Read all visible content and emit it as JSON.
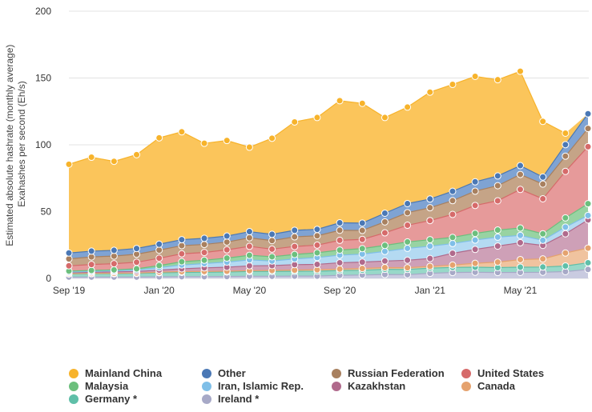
{
  "chart_data": {
    "type": "area",
    "stacked": true,
    "ylabel_lines": [
      "Estimated absolute hashrate (monthly average)",
      "Exahashes per second (Eh/s)"
    ],
    "ylim": [
      0,
      200
    ],
    "yticks": [
      "0",
      "50",
      "100",
      "150",
      "200"
    ],
    "x": [
      "Sep '19",
      "Oct '19",
      "Nov '19",
      "Dec '19",
      "Jan '20",
      "Feb '20",
      "Mar '20",
      "Apr '20",
      "May '20",
      "Jun '20",
      "Jul '20",
      "Aug '20",
      "Sep '20",
      "Oct '20",
      "Nov '20",
      "Dec '20",
      "Jan '21",
      "Feb '21",
      "Mar '21",
      "Apr '21",
      "May '21",
      "Jun '21",
      "Jul '21",
      "Aug '21"
    ],
    "xticks": [
      {
        "index": 0,
        "label": "Sep '19"
      },
      {
        "index": 4,
        "label": "Jan '20"
      },
      {
        "index": 8,
        "label": "May '20"
      },
      {
        "index": 12,
        "label": "Sep '20"
      },
      {
        "index": 16,
        "label": "Jan '21"
      },
      {
        "index": 20,
        "label": "May '21"
      }
    ],
    "grid": true,
    "legend_position": "bottom",
    "legend_columns": 4,
    "series": [
      {
        "name": "Mainland China",
        "color": "#f7b32b",
        "fill": "#fbc55b",
        "values": [
          66.4,
          70.3,
          66.6,
          70.2,
          79.6,
          80.7,
          71.1,
          71.5,
          63.2,
          71.9,
          81.1,
          83.7,
          91.4,
          89.6,
          71.6,
          72.2,
          80.0,
          80.0,
          78.9,
          72.0,
          70.6,
          41.6,
          8.6,
          null
        ]
      },
      {
        "name": "Other",
        "color": "#4a78b5",
        "fill": "#7fa3d3",
        "values": [
          4.4,
          4.3,
          4.3,
          4.3,
          4.4,
          4.5,
          4.6,
          4.5,
          4.6,
          4.7,
          4.9,
          4.8,
          5.6,
          5.5,
          6.5,
          6.8,
          6.5,
          7.0,
          7.0,
          7.3,
          6.6,
          5.3,
          8.6,
          11.0
        ]
      },
      {
        "name": "Russian Federation",
        "color": "#a8805f",
        "fill": "#c5a487",
        "values": [
          5.2,
          5.7,
          5.7,
          6.0,
          6.1,
          6.1,
          6.0,
          5.8,
          6.4,
          6.4,
          7.2,
          7.0,
          7.5,
          6.7,
          8.2,
          9.4,
          9.6,
          10.3,
          10.7,
          11.3,
          11.2,
          11.0,
          11.4,
          13.6
        ]
      },
      {
        "name": "United States",
        "color": "#d66a6a",
        "fill": "#e69a9a",
        "values": [
          3.9,
          4.4,
          4.6,
          4.9,
          5.5,
          5.9,
          5.8,
          6.2,
          6.7,
          5.7,
          6.0,
          5.7,
          7.3,
          6.9,
          9.4,
          12.5,
          14.3,
          17.2,
          20.9,
          21.9,
          28.9,
          26.2,
          34.8,
          42.7
        ]
      },
      {
        "name": "Malaysia",
        "color": "#6cbf7d",
        "fill": "#98d3a2",
        "values": [
          0.8,
          0.8,
          0.8,
          0.9,
          1.5,
          2.5,
          2.5,
          3.0,
          3.4,
          3.2,
          3.3,
          3.6,
          3.8,
          4.1,
          4.5,
          4.8,
          4.9,
          4.6,
          5.0,
          5.3,
          5.5,
          4.9,
          6.9,
          8.8
        ]
      },
      {
        "name": "Iran, Islamic Rep.",
        "color": "#7fbfe8",
        "fill": "#b4daf2",
        "values": [
          0.4,
          0.6,
          0.7,
          1.1,
          1.9,
          2.8,
          3.2,
          3.8,
          4.5,
          3.4,
          4.3,
          5.1,
          5.7,
          6.0,
          7.2,
          8.9,
          9.2,
          7.3,
          7.0,
          6.7,
          5.5,
          3.8,
          5.0,
          3.3
        ]
      },
      {
        "name": "Kazakhstan",
        "color": "#b06a8c",
        "fill": "#cea0b7",
        "values": [
          0.8,
          0.9,
          1.1,
          1.2,
          1.5,
          2.1,
          2.7,
          3.0,
          3.6,
          3.6,
          4.1,
          4.0,
          4.7,
          4.8,
          4.9,
          5.6,
          5.9,
          8.8,
          10.4,
          12.0,
          12.6,
          10.1,
          14.4,
          21.1
        ]
      },
      {
        "name": "Canada",
        "color": "#e5a26e",
        "fill": "#f0c39f",
        "values": [
          0.2,
          0.2,
          0.3,
          0.3,
          0.5,
          0.6,
          0.6,
          0.6,
          0.6,
          0.8,
          0.9,
          1.1,
          1.1,
          1.3,
          1.3,
          1.3,
          1.3,
          1.8,
          2.9,
          4.1,
          5.7,
          6.1,
          9.7,
          11.0
        ]
      },
      {
        "name": "Germany *",
        "color": "#5fbfa8",
        "fill": "#98d8c8",
        "values": [
          2.3,
          2.5,
          2.5,
          2.7,
          3.0,
          3.2,
          3.3,
          3.4,
          3.6,
          3.6,
          3.6,
          3.7,
          3.6,
          3.6,
          3.9,
          3.9,
          3.9,
          3.8,
          3.8,
          3.7,
          3.9,
          3.9,
          4.2,
          5.0
        ]
      },
      {
        "name": "Ireland *",
        "color": "#a7a9c7",
        "fill": "#c9cbe0",
        "values": [
          1.0,
          1.0,
          1.0,
          1.0,
          1.2,
          1.3,
          1.3,
          1.4,
          1.6,
          1.6,
          1.7,
          1.7,
          2.3,
          2.5,
          2.9,
          2.8,
          3.8,
          4.4,
          4.6,
          4.4,
          4.5,
          4.6,
          5.1,
          6.7
        ]
      }
    ]
  }
}
